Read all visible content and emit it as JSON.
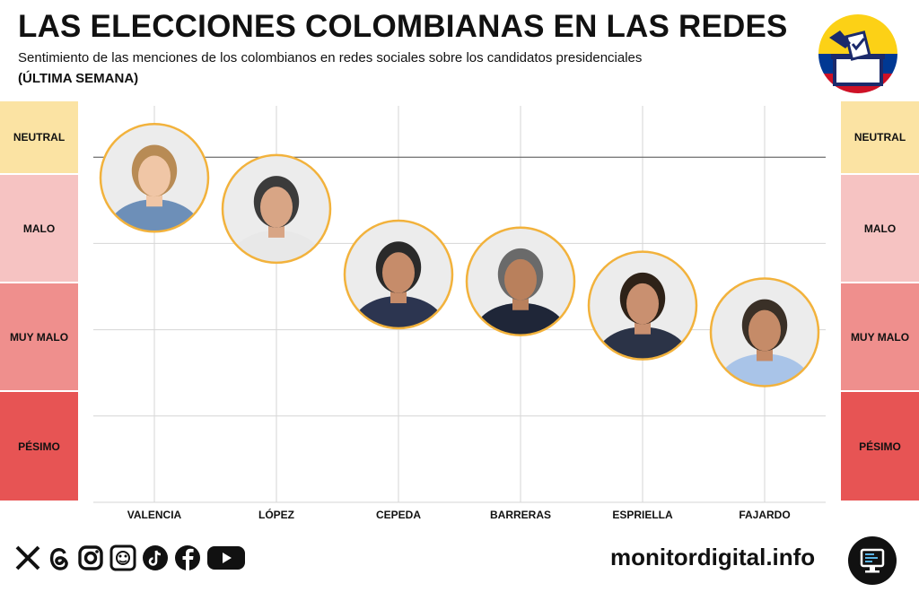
{
  "header": {
    "title": "LAS ELECCIONES COLOMBIANAS EN LAS REDES",
    "subtitle": "Sentimiento de las menciones de los colombianos en redes sociales sobre los candidatos presidenciales",
    "period": "(ÚLTIMA SEMANA)"
  },
  "badge": {
    "icon": "ballot-box-icon",
    "flag_colors": [
      "#FCD116",
      "#003893",
      "#CE1126"
    ]
  },
  "bands": [
    {
      "label": "NEUTRAL",
      "color": "#FBE3A3"
    },
    {
      "label": "MALO",
      "color": "#F6C3C2"
    },
    {
      "label": "MUY MALO",
      "color": "#EF8F8D"
    },
    {
      "label": "PÉSIMO",
      "color": "#E75454"
    }
  ],
  "chart_data": {
    "type": "scatter",
    "y_scale": [
      "PÉSIMO",
      "MUY MALO",
      "MALO",
      "NEUTRAL"
    ],
    "ylim": [
      0,
      5
    ],
    "categories": [
      "VALENCIA",
      "LÓPEZ",
      "CEPEDA",
      "BARRERAS",
      "ESPRIELLA",
      "FAJARDO"
    ],
    "values": [
      3.76,
      3.4,
      2.64,
      2.56,
      2.28,
      1.97
    ],
    "marker": "candidate-photo",
    "marker_border": "#F2B23C",
    "grid": true
  },
  "footer": {
    "social_icons": [
      "x-icon",
      "threads-icon",
      "instagram-icon",
      "podcast-icon",
      "tiktok-icon",
      "facebook-icon",
      "youtube-icon"
    ],
    "website": "monitordigital.info",
    "logo_icon": "monitor-icon"
  }
}
